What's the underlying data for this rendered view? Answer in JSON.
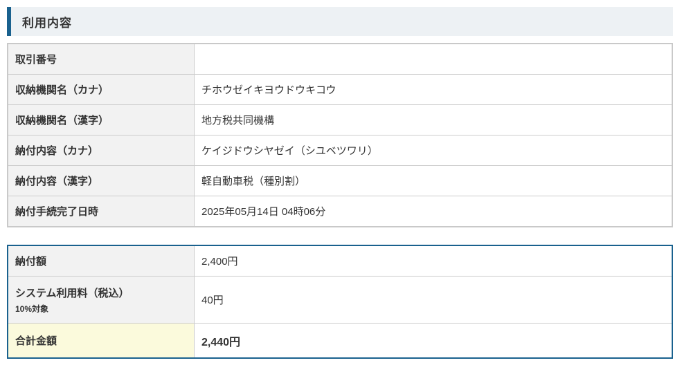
{
  "header": {
    "title": "利用内容"
  },
  "colors": {
    "accent_blue": "#19618e",
    "header_bg": "#edf1f4",
    "label_cell_bg": "#f2f2f2",
    "total_cell_bg": "#fbfadc",
    "details_border": "#c9c9c9"
  },
  "details_table": {
    "rows": [
      {
        "label": "取引番号",
        "value": ""
      },
      {
        "label": "収納機関名（カナ）",
        "value": "チホウゼイキヨウドウキコウ"
      },
      {
        "label": "収納機関名（漢字）",
        "value": "地方税共同機構"
      },
      {
        "label": "納付内容（カナ）",
        "value": "ケイジドウシヤゼイ（シユベツワリ）"
      },
      {
        "label": "納付内容（漢字）",
        "value": "軽自動車税（種別割）"
      },
      {
        "label": "納付手続完了日時",
        "value": "2025年05月14日 04時06分"
      }
    ]
  },
  "amount_table": {
    "rows": [
      {
        "label": "納付額",
        "value": "2,400円"
      },
      {
        "label": "システム利用料（税込）",
        "sublabel": "10%対象",
        "value": "40円"
      },
      {
        "label": "合計金額",
        "value": "2,440円"
      }
    ]
  }
}
